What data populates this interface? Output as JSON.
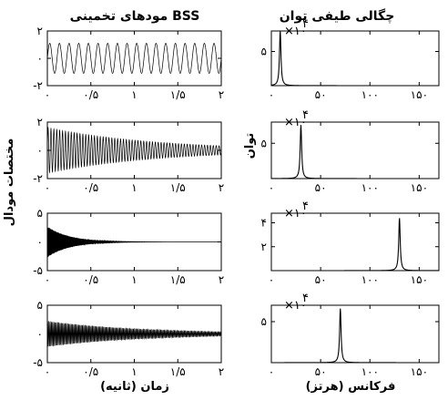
{
  "titles": {
    "left": "مودهای تخمینی BSS",
    "right": "چگالی طیفی توان"
  },
  "labels": {
    "left_y": "مختصات مودال",
    "right_y": "توان",
    "left_x": "زمان (ثانیه)",
    "right_x": "فرکانس (هرتز)"
  },
  "chart_data": [
    {
      "type": "line",
      "column": "modes",
      "row": 0,
      "xlim": [
        0,
        2
      ],
      "ylim": [
        -2,
        2
      ],
      "xticks": [
        0,
        0.5,
        1,
        1.5,
        2
      ],
      "xtick_labels": [
        "۰",
        "۰/۵",
        "۱",
        "۱/۵",
        "۲"
      ],
      "yticks": [
        -2,
        0,
        2
      ],
      "ytick_labels": [
        "-۲",
        "۰",
        "۲"
      ],
      "signal": {
        "amplitude": 1.1,
        "decay_per_s": 0,
        "frequency_hz": 9
      }
    },
    {
      "type": "line",
      "column": "modes",
      "row": 1,
      "xlim": [
        0,
        2
      ],
      "ylim": [
        -2,
        2
      ],
      "xticks": [
        0,
        0.5,
        1,
        1.5,
        2
      ],
      "xtick_labels": [
        "۰",
        "۰/۵",
        "۱",
        "۱/۵",
        "۲"
      ],
      "yticks": [
        -2,
        0,
        2
      ],
      "ytick_labels": [
        "-۲",
        "۰",
        "۲"
      ],
      "signal": {
        "amplitude": 1.6,
        "decay_per_s": 0.8,
        "frequency_hz": 30
      }
    },
    {
      "type": "line",
      "column": "modes",
      "row": 2,
      "xlim": [
        0,
        2
      ],
      "ylim": [
        -5,
        5
      ],
      "xticks": [
        0,
        0.5,
        1,
        1.5,
        2
      ],
      "xtick_labels": [
        "۰",
        "۰/۵",
        "۱",
        "۱/۵",
        "۲"
      ],
      "yticks": [
        -5,
        0,
        5
      ],
      "ytick_labels": [
        "-۵",
        "۰",
        "۵"
      ],
      "signal": {
        "amplitude": 2.7,
        "decay_per_s": 4,
        "frequency_hz": 130
      }
    },
    {
      "type": "line",
      "column": "modes",
      "row": 3,
      "xlim": [
        0,
        2
      ],
      "ylim": [
        -5,
        5
      ],
      "xticks": [
        0,
        0.5,
        1,
        1.5,
        2
      ],
      "xtick_labels": [
        "۰",
        "۰/۵",
        "۱",
        "۱/۵",
        "۲"
      ],
      "yticks": [
        -5,
        0,
        5
      ],
      "ytick_labels": [
        "-۵",
        "۰",
        "۵"
      ],
      "signal": {
        "amplitude": 2.2,
        "decay_per_s": 0.9,
        "frequency_hz": 70
      }
    },
    {
      "type": "line",
      "column": "psd",
      "row": 0,
      "xlim": [
        0,
        170
      ],
      "ylim": [
        0,
        8
      ],
      "xticks": [
        0,
        50,
        100,
        150
      ],
      "xtick_labels": [
        "۰",
        "۵۰",
        "۱۰۰",
        "۱۵۰"
      ],
      "yticks": [
        5
      ],
      "ytick_labels": [
        "۵"
      ],
      "multiplier": "×۱۰",
      "multiplier_exp": "۴",
      "peak": {
        "frequency_hz": 9,
        "value": 8
      }
    },
    {
      "type": "line",
      "column": "psd",
      "row": 1,
      "xlim": [
        0,
        170
      ],
      "ylim": [
        0,
        8
      ],
      "xticks": [
        0,
        50,
        100,
        150
      ],
      "xtick_labels": [
        "۰",
        "۵۰",
        "۱۰۰",
        "۱۵۰"
      ],
      "yticks": [
        5
      ],
      "ytick_labels": [
        "۵"
      ],
      "multiplier": "×۱۰",
      "multiplier_exp": "۴",
      "peak": {
        "frequency_hz": 30,
        "value": 7.6
      }
    },
    {
      "type": "line",
      "column": "psd",
      "row": 2,
      "xlim": [
        0,
        170
      ],
      "ylim": [
        0,
        4.8
      ],
      "xticks": [
        0,
        50,
        100,
        150
      ],
      "xtick_labels": [
        "۰",
        "۵۰",
        "۱۰۰",
        "۱۵۰"
      ],
      "yticks": [
        2,
        4
      ],
      "ytick_labels": [
        "۲",
        "۴"
      ],
      "multiplier": "×۱۰",
      "multiplier_exp": "۴",
      "peak": {
        "frequency_hz": 130,
        "value": 4.4
      }
    },
    {
      "type": "line",
      "column": "psd",
      "row": 3,
      "xlim": [
        0,
        170
      ],
      "ylim": [
        0,
        7
      ],
      "xticks": [
        0,
        50,
        100,
        150
      ],
      "xtick_labels": [
        "۰",
        "۵۰",
        "۱۰۰",
        "۱۵۰"
      ],
      "yticks": [
        5
      ],
      "ytick_labels": [
        "۵"
      ],
      "multiplier": "×۱۰",
      "multiplier_exp": "۴",
      "peak": {
        "frequency_hz": 70,
        "value": 6.6
      }
    }
  ]
}
